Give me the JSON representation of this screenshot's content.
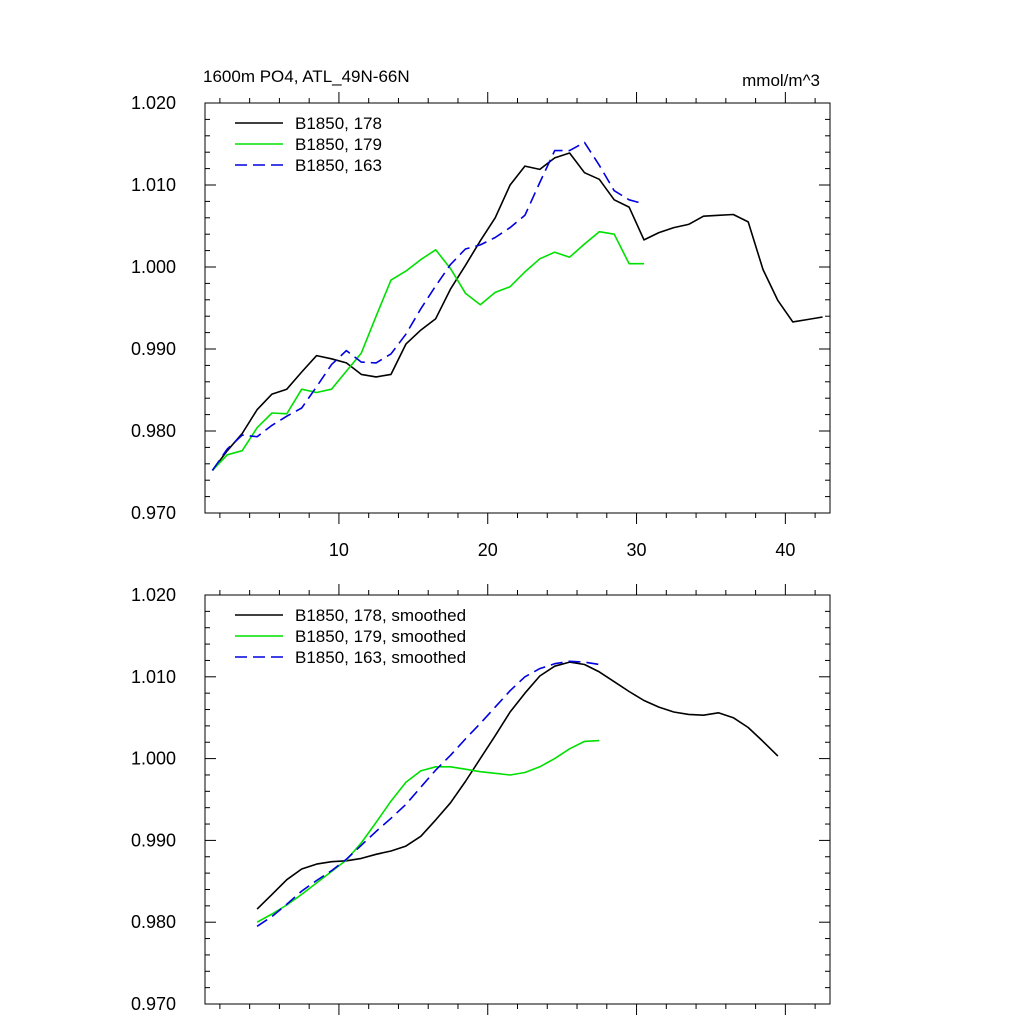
{
  "figure": {
    "title_left": "1600m PO4, ATL_49N-66N",
    "title_right": "mmol/m^3"
  },
  "chart_data": [
    {
      "type": "line",
      "title": "1600m PO4, ATL_49N-66N",
      "units": "mmol/m^3",
      "xlim": [
        1,
        43
      ],
      "ylim": [
        0.97,
        1.02
      ],
      "xticks": [
        10,
        20,
        30,
        40
      ],
      "xtick_labels": [
        "10",
        "20",
        "30",
        "40"
      ],
      "yticks": [
        0.97,
        0.98,
        0.99,
        1.0,
        1.01,
        1.02
      ],
      "ytick_labels": [
        "0.970",
        "0.980",
        "0.990",
        "1.000",
        "1.010",
        "1.020"
      ],
      "legend_position": "top-left",
      "series": [
        {
          "name": "B1850, 178",
          "color": "#000000",
          "dash": "solid",
          "x": [
            1.5,
            2.5,
            3.5,
            4.5,
            5.5,
            6.5,
            7.5,
            8.5,
            9.5,
            10.5,
            11.5,
            12.5,
            13.5,
            14.5,
            15.5,
            16.5,
            17.5,
            18.5,
            19.5,
            20.5,
            21.5,
            22.5,
            23.5,
            24.5,
            25.5,
            26.5,
            27.5,
            28.5,
            29.5,
            30.5,
            31.5,
            32.5,
            33.5,
            34.5,
            35.5,
            36.5,
            37.5,
            38.5,
            39.5,
            40.5,
            41.5,
            42.5
          ],
          "y": [
            0.9752,
            0.9776,
            0.9797,
            0.9826,
            0.9845,
            0.9851,
            0.9872,
            0.9892,
            0.9888,
            0.9883,
            0.9869,
            0.9866,
            0.9869,
            0.9906,
            0.9923,
            0.9937,
            0.9973,
            1.0002,
            1.0032,
            1.006,
            1.01,
            1.0123,
            1.0119,
            1.0133,
            1.0139,
            1.0115,
            1.0107,
            1.0082,
            1.0073,
            1.0033,
            1.0042,
            1.0048,
            1.0052,
            1.0062,
            1.0063,
            1.0064,
            1.0055,
            0.9997,
            0.9959,
            0.9933,
            0.9936,
            0.9939
          ]
        },
        {
          "name": "B1850, 179",
          "color": "#00e000",
          "dash": "solid",
          "x": [
            1.5,
            2.5,
            3.5,
            4.5,
            5.5,
            6.5,
            7.5,
            8.5,
            9.5,
            10.5,
            11.5,
            12.5,
            13.5,
            14.5,
            15.5,
            16.5,
            17.5,
            18.5,
            19.5,
            20.5,
            21.5,
            22.5,
            23.5,
            24.5,
            25.5,
            26.5,
            27.5,
            28.5,
            29.5,
            30.5
          ],
          "y": [
            0.9752,
            0.9771,
            0.9776,
            0.9804,
            0.9822,
            0.9821,
            0.9851,
            0.9847,
            0.9851,
            0.9873,
            0.9895,
            0.994,
            0.9984,
            0.9995,
            1.0009,
            1.0021,
            0.9998,
            0.9968,
            0.9954,
            0.9969,
            0.9976,
            0.9994,
            1.001,
            1.0018,
            1.0012,
            1.0028,
            1.0043,
            1.004,
            1.0004,
            1.0004
          ]
        },
        {
          "name": "B1850, 163",
          "color": "#0000e0",
          "dash": "dashed",
          "x": [
            1.5,
            2.5,
            3.5,
            4.5,
            5.5,
            6.5,
            7.5,
            8.5,
            9.5,
            10.5,
            11.5,
            12.5,
            13.5,
            14.5,
            15.5,
            16.5,
            17.5,
            18.5,
            19.5,
            20.5,
            21.5,
            22.5,
            23.5,
            24.5,
            25.5,
            26.5,
            27.5,
            28.5,
            29.5,
            30.5
          ],
          "y": [
            0.9752,
            0.9778,
            0.9795,
            0.9793,
            0.9807,
            0.9818,
            0.9828,
            0.9854,
            0.9881,
            0.9898,
            0.9884,
            0.9883,
            0.9894,
            0.9918,
            0.9949,
            0.9977,
            1.0003,
            1.0022,
            1.0027,
            1.0036,
            1.0048,
            1.0063,
            1.0103,
            1.0142,
            1.0142,
            1.0152,
            1.0124,
            1.0093,
            1.0082,
            1.0077
          ]
        }
      ]
    },
    {
      "type": "line",
      "xlim": [
        1,
        43
      ],
      "ylim": [
        0.97,
        1.02
      ],
      "xticks": [
        10,
        20,
        30,
        40
      ],
      "yticks": [
        0.97,
        0.98,
        0.99,
        1.0,
        1.01,
        1.02
      ],
      "ytick_labels": [
        "0.970",
        "0.980",
        "0.990",
        "1.000",
        "1.010",
        "1.020"
      ],
      "legend_position": "top-left",
      "series": [
        {
          "name": "B1850, 178, smoothed",
          "color": "#000000",
          "dash": "solid",
          "x": [
            4.5,
            5.5,
            6.5,
            7.5,
            8.5,
            9.5,
            10.5,
            11.5,
            12.5,
            13.5,
            14.5,
            15.5,
            16.5,
            17.5,
            18.5,
            19.5,
            20.5,
            21.5,
            22.5,
            23.5,
            24.5,
            25.5,
            26.5,
            27.5,
            28.5,
            29.5,
            30.5,
            31.5,
            32.5,
            33.5,
            34.5,
            35.5,
            36.5,
            37.5,
            38.5,
            39.5
          ],
          "y": [
            0.9816,
            0.9834,
            0.9852,
            0.9865,
            0.9871,
            0.9874,
            0.9875,
            0.9878,
            0.9883,
            0.9887,
            0.9893,
            0.9905,
            0.9925,
            0.9946,
            0.9972,
            1.0,
            1.0028,
            1.0057,
            1.008,
            1.0101,
            1.0113,
            1.0118,
            1.0115,
            1.0106,
            1.0094,
            1.0082,
            1.0071,
            1.0063,
            1.0057,
            1.0054,
            1.0053,
            1.0056,
            1.005,
            1.0038,
            1.0021,
            1.0003
          ]
        },
        {
          "name": "B1850, 179, smoothed",
          "color": "#00e000",
          "dash": "solid",
          "x": [
            4.5,
            5.5,
            6.5,
            7.5,
            8.5,
            9.5,
            10.5,
            11.5,
            12.5,
            13.5,
            14.5,
            15.5,
            16.5,
            17.5,
            18.5,
            19.5,
            20.5,
            21.5,
            22.5,
            23.5,
            24.5,
            25.5,
            26.5,
            27.5
          ],
          "y": [
            0.98,
            0.981,
            0.9821,
            0.9834,
            0.9848,
            0.9862,
            0.9876,
            0.9897,
            0.9922,
            0.9948,
            0.9971,
            0.9985,
            0.999,
            0.999,
            0.9987,
            0.9984,
            0.9982,
            0.998,
            0.9983,
            0.999,
            1.0,
            1.0012,
            1.0021,
            1.0022
          ]
        },
        {
          "name": "B1850, 163, smoothed",
          "color": "#0000e0",
          "dash": "dashed",
          "x": [
            4.5,
            5.5,
            6.5,
            7.5,
            8.5,
            9.5,
            10.5,
            11.5,
            12.5,
            13.5,
            14.5,
            15.5,
            16.5,
            17.5,
            18.5,
            19.5,
            20.5,
            21.5,
            22.5,
            23.5,
            24.5,
            25.5,
            26.5,
            27.5
          ],
          "y": [
            0.9795,
            0.9807,
            0.9822,
            0.9838,
            0.9851,
            0.9863,
            0.9877,
            0.9894,
            0.9911,
            0.9927,
            0.9944,
            0.9965,
            0.9986,
            1.0004,
            1.0024,
            1.0043,
            1.0063,
            1.0083,
            1.01,
            1.011,
            1.0116,
            1.0119,
            1.0118,
            1.0115
          ]
        }
      ]
    }
  ]
}
